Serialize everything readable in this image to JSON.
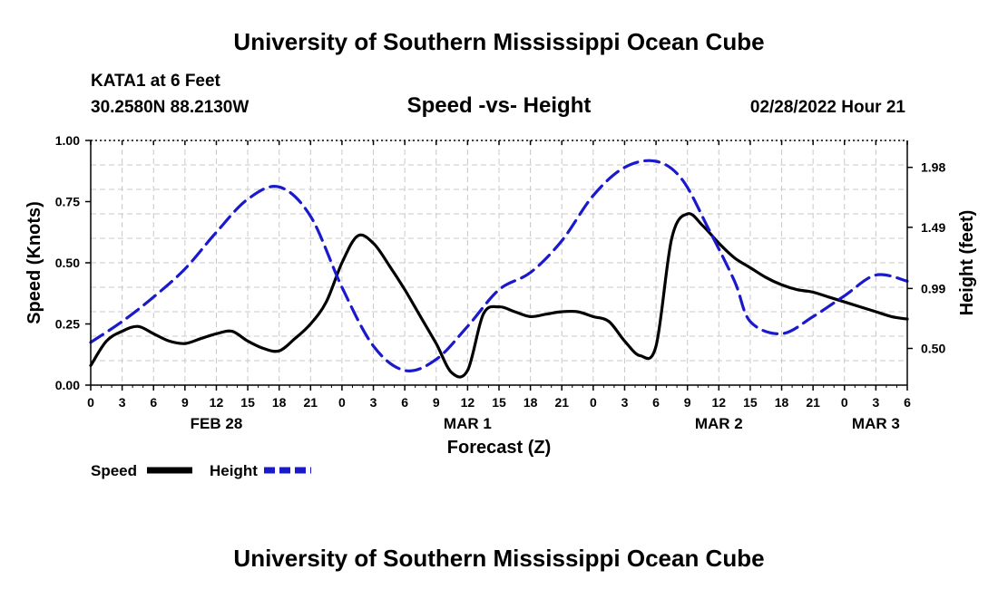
{
  "header": {
    "title": "University of Southern Mississippi Ocean Cube",
    "station": "KATA1 at 6 Feet",
    "coords": "30.2580N  88.2130W",
    "chart_title": "Speed -vs- Height",
    "timestamp": "02/28/2022 Hour 21"
  },
  "footer": {
    "title": "University of Southern Mississippi Ocean Cube"
  },
  "chart_data": {
    "type": "line",
    "title": "Speed -vs- Height",
    "xlabel": "Forecast (Z)",
    "ylabel": "Speed (Knots)",
    "ylabel_right": "Height (feet)",
    "xlim": [
      0,
      78
    ],
    "ylim": [
      0,
      1
    ],
    "ylim_right": [
      0.2,
      2.2
    ],
    "grid": true,
    "x_ticks": [
      0,
      3,
      6,
      9,
      12,
      15,
      18,
      21,
      24,
      27,
      30,
      33,
      36,
      39,
      42,
      45,
      48,
      51,
      54,
      57,
      60,
      63,
      66,
      69,
      72,
      75,
      78
    ],
    "x_tick_labels": [
      "0",
      "3",
      "6",
      "9",
      "12",
      "15",
      "18",
      "21",
      "0",
      "3",
      "6",
      "9",
      "12",
      "15",
      "18",
      "21",
      "0",
      "3",
      "6",
      "9",
      "12",
      "15",
      "18",
      "21",
      "0",
      "3",
      "6"
    ],
    "date_labels": [
      {
        "x": 12,
        "label": "FEB 28"
      },
      {
        "x": 36,
        "label": "MAR 1"
      },
      {
        "x": 60,
        "label": "MAR 2"
      },
      {
        "x": 75,
        "label": "MAR 3"
      }
    ],
    "y_ticks": [
      0.0,
      0.25,
      0.5,
      0.75,
      1.0
    ],
    "y_tick_labels": [
      "0.00",
      "0.25",
      "0.50",
      "0.75",
      "1.00"
    ],
    "y_right_ticks": [
      0.5,
      0.99,
      1.49,
      1.98
    ],
    "y_right_tick_labels": [
      "0.50",
      "0.99",
      "1.49",
      "1.98"
    ],
    "legend": [
      {
        "name": "Speed",
        "color": "#000000",
        "dash": "solid"
      },
      {
        "name": "Height",
        "color": "#1a1acc",
        "dash": "dashed"
      }
    ],
    "series": [
      {
        "name": "Speed",
        "axis": "left",
        "color": "#000000",
        "x": [
          0,
          1.5,
          3,
          4.5,
          6,
          7.5,
          9,
          10.5,
          12,
          13.5,
          15,
          16.5,
          18,
          19.5,
          21,
          22.5,
          24,
          25.5,
          27,
          28.5,
          30,
          31.5,
          33,
          34.5,
          36,
          37.5,
          39,
          40.5,
          42,
          43.5,
          45,
          46.5,
          48,
          49.5,
          51,
          52.5,
          54,
          55.5,
          57,
          58.5,
          60,
          61.5,
          63,
          64.5,
          66,
          67.5,
          69,
          70.5,
          72,
          73.5,
          75,
          76.5,
          78
        ],
        "values": [
          0.08,
          0.18,
          0.22,
          0.24,
          0.21,
          0.18,
          0.17,
          0.19,
          0.21,
          0.22,
          0.18,
          0.15,
          0.14,
          0.19,
          0.25,
          0.34,
          0.5,
          0.61,
          0.58,
          0.49,
          0.39,
          0.28,
          0.17,
          0.05,
          0.06,
          0.29,
          0.32,
          0.3,
          0.28,
          0.29,
          0.3,
          0.3,
          0.28,
          0.26,
          0.18,
          0.12,
          0.16,
          0.6,
          0.7,
          0.65,
          0.58,
          0.52,
          0.48,
          0.44,
          0.41,
          0.39,
          0.38,
          0.36,
          0.34,
          0.32,
          0.3,
          0.28,
          0.27
        ]
      },
      {
        "name": "Height",
        "axis": "right",
        "color": "#1a1acc",
        "x": [
          0,
          3,
          6,
          9,
          12,
          15,
          18,
          21,
          24,
          27,
          30,
          33,
          36,
          39,
          42,
          45,
          48,
          51,
          54,
          56.5,
          59,
          61.5,
          63,
          66,
          69,
          72,
          75,
          78
        ],
        "values": [
          0.55,
          0.72,
          0.92,
          1.15,
          1.45,
          1.72,
          1.82,
          1.58,
          1.0,
          0.52,
          0.32,
          0.41,
          0.68,
          0.98,
          1.12,
          1.38,
          1.75,
          1.98,
          2.03,
          1.88,
          1.48,
          1.05,
          0.72,
          0.62,
          0.76,
          0.93,
          1.1,
          1.05
        ]
      }
    ]
  }
}
